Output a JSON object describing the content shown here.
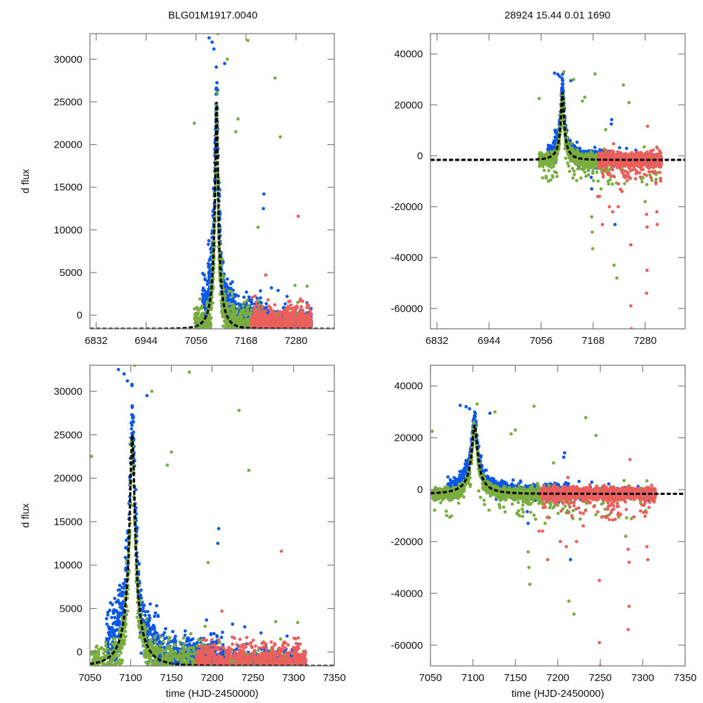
{
  "figure": {
    "title_left": "BLG01M1917.0040",
    "title_right": "28924  15.44  0.01  1690"
  },
  "colors": {
    "series_blue": "#0b57e8",
    "series_green": "#7aad3f",
    "series_red": "#ea5f5c",
    "model": "#000000",
    "frame": "#7a7a7a"
  },
  "chart_data": [
    {
      "id": "top-left",
      "type": "scatter",
      "title": "BLG01M1917.0040",
      "xlabel": "",
      "ylabel": "d flux",
      "xlim": [
        6818,
        7366
      ],
      "ylim": [
        -1600,
        33000
      ],
      "xticks": [
        6832,
        6944,
        7056,
        7168,
        7280
      ],
      "yticks": [
        0,
        5000,
        10000,
        15000,
        20000,
        25000,
        30000
      ],
      "model": "peak"
    },
    {
      "id": "top-right",
      "type": "scatter",
      "title": "28924  15.44  0.01  1690",
      "xlabel": "",
      "ylabel": "",
      "xlim": [
        6818,
        7366
      ],
      "ylim": [
        -68000,
        48000
      ],
      "xticks": [
        6832,
        6944,
        7056,
        7168,
        7280
      ],
      "yticks": [
        -60000,
        -40000,
        -20000,
        0,
        20000,
        40000
      ],
      "model": "peak"
    },
    {
      "id": "bottom-left",
      "type": "scatter",
      "title": "",
      "xlabel": "time (HJD-2450000)",
      "ylabel": "d flux",
      "xlim": [
        7050,
        7350
      ],
      "ylim": [
        -1600,
        33000
      ],
      "xticks": [
        7050,
        7100,
        7150,
        7200,
        7250,
        7300,
        7350
      ],
      "yticks": [
        0,
        5000,
        10000,
        15000,
        20000,
        25000,
        30000
      ],
      "model": "peak"
    },
    {
      "id": "bottom-right",
      "type": "scatter",
      "title": "",
      "xlabel": "time (HJD-2450000)",
      "ylabel": "",
      "xlim": [
        7050,
        7350
      ],
      "ylim": [
        -68000,
        48000
      ],
      "xticks": [
        7050,
        7100,
        7150,
        7200,
        7250,
        7300,
        7350
      ],
      "yticks": [
        -60000,
        -40000,
        -20000,
        0,
        20000,
        40000
      ],
      "model": "peak"
    }
  ],
  "model_curve": {
    "name": "model fit (dashed)",
    "t0": 7102,
    "peak_flux": 25000,
    "baseline_flux": -1600,
    "tE": 28,
    "u0": 0.105
  },
  "series": [
    {
      "name": "blue",
      "color_key": "series_blue",
      "bands": [
        {
          "t": [
            7070,
            7082
          ],
          "center_offset": 1200,
          "spread": 3500
        },
        {
          "t": [
            7082,
            7110
          ],
          "center_offset": 2500,
          "spread": 3500
        },
        {
          "t": [
            7110,
            7140
          ],
          "center_offset": 1000,
          "spread": 3000
        },
        {
          "t": [
            7140,
            7180
          ],
          "center_offset": 700,
          "spread": 2500
        },
        {
          "t": [
            7180,
            7215
          ],
          "center_offset": 700,
          "spread": 2500
        },
        {
          "t": [
            7215,
            7315
          ],
          "center_offset": 200,
          "spread": 1500
        }
      ],
      "outliers": [
        [
          7085,
          32500
        ],
        [
          7092,
          32000
        ],
        [
          7096,
          31200
        ],
        [
          7120,
          29500
        ],
        [
          7128,
          1000
        ],
        [
          7208,
          14200
        ],
        [
          7207,
          12500
        ],
        [
          7260,
          2200
        ],
        [
          7225,
          3200
        ],
        [
          7240,
          2900
        ]
      ]
    },
    {
      "name": "green",
      "color_key": "series_green",
      "bands": [
        {
          "t": [
            7052,
            7070
          ],
          "center_offset": -200,
          "spread": 2000
        },
        {
          "t": [
            7070,
            7110
          ],
          "center_offset": -1200,
          "spread": 2400
        },
        {
          "t": [
            7110,
            7160
          ],
          "center_offset": -400,
          "spread": 2400
        },
        {
          "t": [
            7160,
            7200
          ],
          "center_offset": -300,
          "spread": 2500
        },
        {
          "t": [
            7200,
            7315
          ],
          "center_offset": -300,
          "spread": 1500
        }
      ],
      "outliers": [
        [
          7105,
          33000
        ],
        [
          7126,
          30000
        ],
        [
          7172,
          32200
        ],
        [
          7233,
          27800
        ],
        [
          7245,
          20900
        ],
        [
          7278,
          3500
        ],
        [
          7284,
          1500
        ],
        [
          7305,
          3400
        ],
        [
          7150,
          23000
        ],
        [
          7145,
          21500
        ],
        [
          7052,
          22500
        ],
        [
          7195,
          10300
        ]
      ]
    },
    {
      "name": "red",
      "color_key": "series_red",
      "bands": [
        {
          "t": [
            7180,
            7315
          ],
          "center_offset": 0,
          "spread": 2200
        }
      ],
      "outliers": [
        [
          7285,
          11600
        ],
        [
          7212,
          4700
        ]
      ]
    }
  ],
  "negative_outliers_right_panels": {
    "blue": [
      [
        7128,
        1000
      ],
      [
        7164,
        -8500
      ],
      [
        7165,
        -13000
      ],
      [
        7215,
        -27000
      ]
    ],
    "green": [
      [
        7165,
        -24000
      ],
      [
        7166,
        -30000
      ],
      [
        7167,
        -36500
      ],
      [
        7213,
        -43000
      ],
      [
        7219,
        -48000
      ],
      [
        7158,
        -7500
      ],
      [
        7200,
        -6000
      ],
      [
        7230,
        -14000
      ],
      [
        7185,
        -13000
      ],
      [
        7280,
        -18000
      ]
    ],
    "red": [
      [
        7178,
        -16000
      ],
      [
        7182,
        -16000
      ],
      [
        7188,
        -27000
      ],
      [
        7222,
        -20000
      ],
      [
        7230,
        -14000
      ],
      [
        7249,
        -35000
      ],
      [
        7249,
        -59000
      ],
      [
        7250,
        -68000
      ],
      [
        7283,
        -23000
      ],
      [
        7284,
        -28000
      ],
      [
        7284,
        -45000
      ],
      [
        7283,
        -54000
      ],
      [
        7305,
        -22000
      ],
      [
        7306,
        -27000
      ],
      [
        7203,
        -20000
      ],
      [
        7210,
        -22000
      ]
    ]
  }
}
